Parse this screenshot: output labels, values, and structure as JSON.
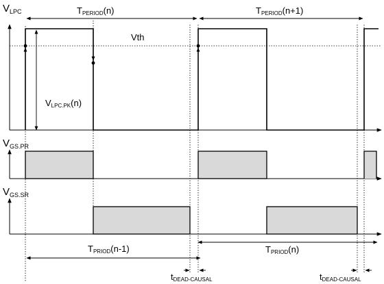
{
  "labels": {
    "v_lpc": {
      "main": "V",
      "sub": "LPC"
    },
    "v_gs_pr": {
      "main": "V",
      "sub": "GS.PR"
    },
    "v_gs_sr": {
      "main": "V",
      "sub": "GS.SR"
    },
    "vth": "Vth",
    "t_period_n": {
      "main": "T",
      "sub": "PERIOD",
      "suffix": "(n)"
    },
    "t_period_n1": {
      "main": "T",
      "sub": "PERIOD",
      "suffix": "(n+1)"
    },
    "v_lpc_pk": {
      "main": "V",
      "sub": "LPC.PK",
      "suffix": "(n)"
    },
    "t_priod_nm1": {
      "main": "T",
      "sub": "PRIOD",
      "suffix": "(n-1)"
    },
    "t_priod_n": {
      "main": "T",
      "sub": "PRIOD",
      "suffix": "(n)"
    },
    "t_dead_1": {
      "main": "t",
      "sub": "DEAD-CAUSAL"
    },
    "t_dead_2": {
      "main": "t",
      "sub": "DEAD-CAUSAL"
    }
  },
  "colors": {
    "pulse_fill": "#d9d9d9",
    "line": "#000000"
  }
}
